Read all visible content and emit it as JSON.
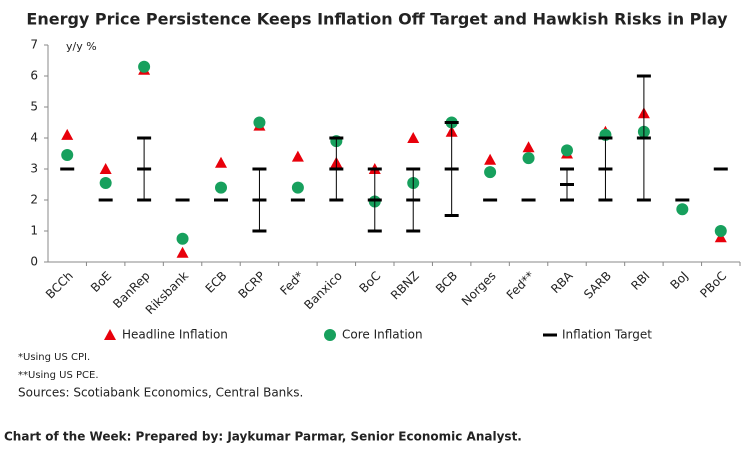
{
  "chart_data": {
    "type": "dot",
    "title": "Energy Price Persistence Keeps Inflation Off Target and Hawkish Risks in Play",
    "y_unit": "y/y %",
    "categories": [
      "BCCh",
      "BoE",
      "BanRep",
      "Riksbank",
      "ECB",
      "BCRP",
      "Fed*",
      "Banxico",
      "BoC",
      "RBNZ",
      "BCB",
      "Norges",
      "Fed**",
      "RBA",
      "SARB",
      "RBI",
      "BoJ",
      "PBoC"
    ],
    "series": [
      {
        "name": "Headline Inflation",
        "color": "#e8000b",
        "marker": "triangle",
        "values": [
          4.1,
          3.0,
          6.2,
          0.3,
          3.2,
          4.4,
          3.4,
          3.2,
          3.0,
          4.0,
          4.2,
          3.3,
          3.7,
          3.5,
          4.2,
          4.8,
          null,
          0.8
        ]
      },
      {
        "name": "Core Inflation",
        "color": "#17a05d",
        "marker": "circle",
        "values": [
          3.45,
          2.55,
          6.3,
          0.75,
          2.4,
          4.5,
          2.4,
          3.9,
          1.95,
          2.55,
          4.5,
          2.9,
          3.35,
          3.6,
          4.1,
          4.2,
          1.7,
          1.0
        ]
      },
      {
        "name": "Inflation Target",
        "color": "#000000",
        "marker": "dash",
        "values": [
          3,
          2,
          3,
          2,
          2,
          2,
          2,
          3,
          2,
          2,
          3,
          2,
          2,
          2.5,
          3,
          4,
          2,
          3
        ],
        "low": [
          null,
          null,
          2,
          null,
          null,
          1,
          null,
          2,
          1,
          1,
          1.5,
          null,
          null,
          2,
          2,
          2,
          null,
          null
        ],
        "high": [
          null,
          null,
          4,
          null,
          null,
          3,
          null,
          4,
          3,
          3,
          4.5,
          null,
          null,
          3,
          4,
          6,
          null,
          null
        ]
      }
    ],
    "ylim": [
      0,
      7
    ],
    "yticks": [
      0,
      1,
      2,
      3,
      4,
      5,
      6,
      7
    ],
    "footnotes": [
      "*Using US CPI.",
      "**Using US PCE.",
      "Sources: Scotiabank Economics, Central Banks."
    ],
    "credit": "Chart of the Week: Prepared by: Jaykumar Parmar, Senior Economic Analyst."
  }
}
